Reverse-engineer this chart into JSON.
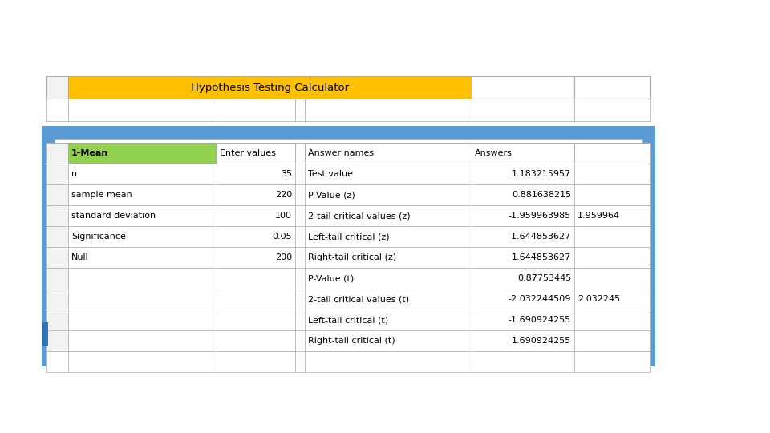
{
  "title": "Hypothesis Testing Calculator",
  "title_bg": "#FFC000",
  "outer_bg": "#5B9BD5",
  "inner_bg": "#FFFFFF",
  "col1_header_bg": "#92D050",
  "col1_header_text": "1-Mean",
  "col2_header_text": "Enter values",
  "col3_header_text": "Answer names",
  "col4_header_text": "Answers",
  "page_bg": "#FFFFFF",
  "left_data": [
    [
      "n",
      "35"
    ],
    [
      "sample mean",
      "220"
    ],
    [
      "standard deviation",
      "100"
    ],
    [
      "Significance",
      "0.05"
    ],
    [
      "Null",
      "200"
    ],
    [
      "",
      ""
    ],
    [
      "",
      ""
    ],
    [
      "",
      ""
    ],
    [
      "",
      ""
    ]
  ],
  "right_data": [
    [
      "Test value",
      "1.183215957",
      ""
    ],
    [
      "P-Value (z)",
      "0.881638215",
      ""
    ],
    [
      "2-tail critical values (z)",
      "-1.959963985",
      "1.959964"
    ],
    [
      "Left-tail critical (z)",
      "-1.644853627",
      ""
    ],
    [
      "Right-tail critical (z)",
      "1.644853627",
      ""
    ],
    [
      "P-Value (t)",
      "0.87753445",
      ""
    ],
    [
      "2-tail critical values (t)",
      "-2.032244509",
      "2.032245"
    ],
    [
      "Left-tail critical (t)",
      "-1.690924255",
      ""
    ],
    [
      "Right-tail critical (t)",
      "1.690924255",
      ""
    ]
  ],
  "font_size": 8.0,
  "grid_color": "#B0B0B0",
  "text_color": "#000000"
}
